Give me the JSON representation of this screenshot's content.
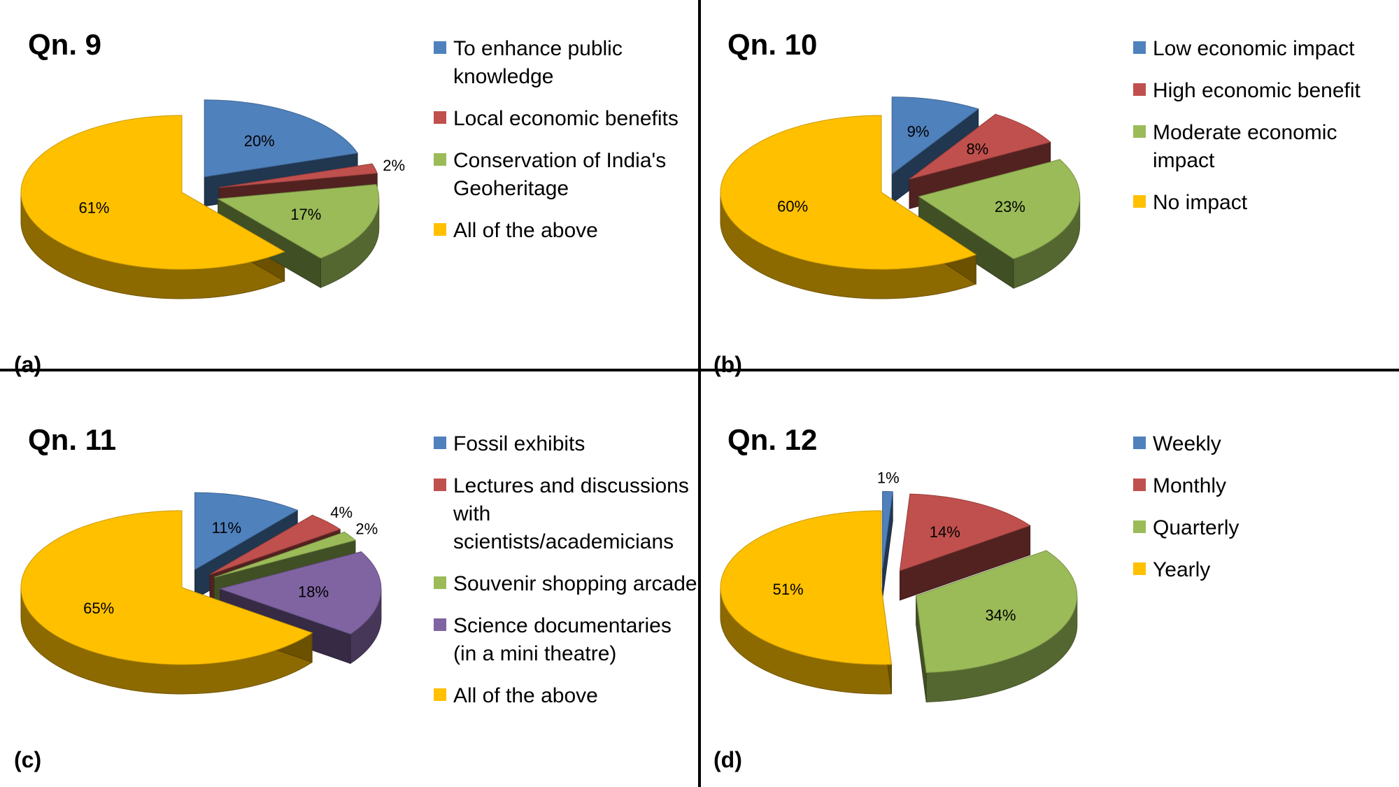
{
  "chart_data": [
    {
      "type": "pie",
      "title": "Qn. 9",
      "panel": "(a)",
      "categories": [
        "To enhance public knowledge",
        "Local economic benefits",
        "Conservation of India's Geoheritage",
        "All of the above"
      ],
      "values": [
        20,
        2,
        17,
        61
      ],
      "labels": [
        "20%",
        "2%",
        "17%",
        "61%"
      ],
      "colors": [
        "#4F81BD",
        "#C0504D",
        "#9BBB59",
        "#FFC000"
      ],
      "legend": "right"
    },
    {
      "type": "pie",
      "title": "Qn. 10",
      "panel": "(b)",
      "categories": [
        "Low economic impact",
        "High economic benefit",
        "Moderate economic impact",
        "No impact"
      ],
      "values": [
        9,
        8,
        23,
        60
      ],
      "labels": [
        "9%",
        "8%",
        "23%",
        "60%"
      ],
      "colors": [
        "#4F81BD",
        "#C0504D",
        "#9BBB59",
        "#FFC000"
      ],
      "legend": "right"
    },
    {
      "type": "pie",
      "title": "Qn. 11",
      "panel": "(c)",
      "categories": [
        "Fossil exhibits",
        "Lectures and discussions with scientists/academicians",
        "Souvenir shopping arcade",
        "Science documentaries (in a mini theatre)",
        "All of the above"
      ],
      "values": [
        11,
        4,
        2,
        18,
        65
      ],
      "labels": [
        "11%",
        "4%",
        "2%",
        "18%",
        "65%"
      ],
      "colors": [
        "#4F81BD",
        "#C0504D",
        "#9BBB59",
        "#8064A2",
        "#FFC000"
      ],
      "legend": "right"
    },
    {
      "type": "pie",
      "title": "Qn. 12",
      "panel": "(d)",
      "categories": [
        "Weekly",
        "Monthly",
        "Quarterly",
        "Yearly"
      ],
      "values": [
        1,
        14,
        34,
        51
      ],
      "labels": [
        "1%",
        "14%",
        "34%",
        "51%"
      ],
      "colors": [
        "#4F81BD",
        "#C0504D",
        "#9BBB59",
        "#FFC000"
      ],
      "legend": "right"
    }
  ]
}
